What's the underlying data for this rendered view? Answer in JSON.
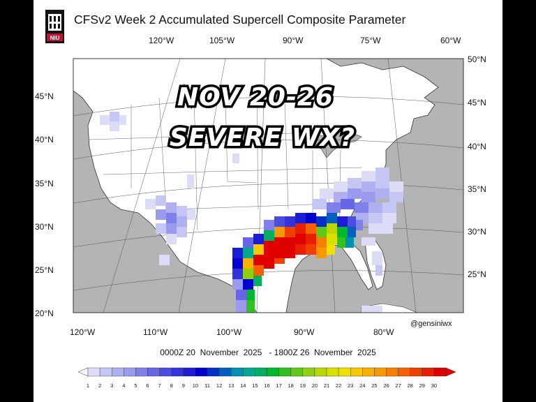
{
  "title": "CFSv2 Week 2 Accumulated Supercell Composite Parameter",
  "logo_text": "NIU",
  "overlay": {
    "line1": "NOV 20-26",
    "line2": "SEVERE WX?"
  },
  "credit": "@gensiniwx",
  "date_range": "0000Z 20  November  2025   - 1800Z 26  November  2025",
  "top_longitudes": [
    "120°W",
    "105°W",
    "90°W",
    "75°W",
    "60°W"
  ],
  "bottom_longitudes": [
    "120°W",
    "110°W",
    "100°W",
    "90°W",
    "80°W"
  ],
  "left_latitudes": [
    "45°N",
    "40°N",
    "35°N",
    "30°N",
    "25°N",
    "20°N"
  ],
  "right_latitudes": [
    "50°N",
    "45°N",
    "40°N",
    "35°N",
    "30°N",
    "25°N"
  ],
  "colorbar": {
    "labels": [
      "1",
      "2",
      "3",
      "4",
      "5",
      "6",
      "7",
      "8",
      "9",
      "10",
      "11",
      "12",
      "13",
      "14",
      "15",
      "16",
      "17",
      "18",
      "19",
      "20",
      "21",
      "22",
      "23",
      "24",
      "25",
      "26",
      "27",
      "28",
      "29",
      "30"
    ],
    "colors": [
      "#dcdcf7",
      "#c6c6f4",
      "#b0b0f1",
      "#9a9aee",
      "#8080ea",
      "#6666e6",
      "#4c4ce0",
      "#3333dc",
      "#1c1cd6",
      "#0000d0",
      "#0030c8",
      "#0060c0",
      "#0090b0",
      "#00a890",
      "#00b060",
      "#00b830",
      "#30c020",
      "#60c818",
      "#90d010",
      "#b8d800",
      "#d8e000",
      "#f0e000",
      "#f8c800",
      "#f8b000",
      "#f89800",
      "#f88000",
      "#f86000",
      "#f04000",
      "#e82000",
      "#e00000"
    ]
  }
}
